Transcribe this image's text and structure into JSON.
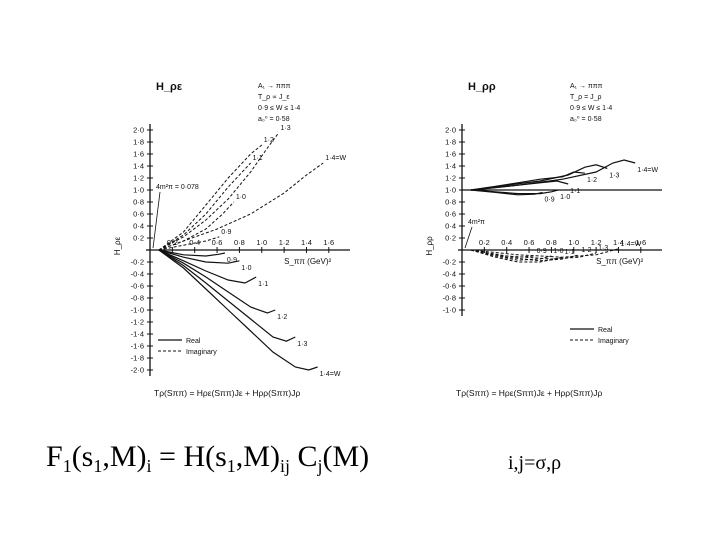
{
  "chart_data": [
    {
      "type": "line",
      "panel": "left",
      "title": "",
      "ylabel": "H_ρε",
      "ylabel_axis": "H_ρε",
      "xlabel": "S_ππ (GeV)²",
      "x_ticks": [
        "0·2",
        "0·4",
        "0·6",
        "0·8",
        "1·0",
        "1·2",
        "1·4",
        "1·6"
      ],
      "y_ticks_pos": [
        "2·0",
        "1·8",
        "1·6",
        "1·4",
        "1·2",
        "1·0",
        "0·8",
        "0·6",
        "0·4",
        "0·2"
      ],
      "y_ticks_neg": [
        "-0·2",
        "-0·4",
        "-0·6",
        "-0·8",
        "-1·0",
        "-1·2",
        "-1·4",
        "-1·6",
        "-1·8",
        "-2·0"
      ],
      "xlim": [
        0,
        1.7
      ],
      "ylim": [
        -2.1,
        2.1
      ],
      "header_annotations": [
        "A₁ → πππ",
        "T_ρ ∝ J_ε",
        "0·9 ≤ W ≤ 1·4",
        "a₀⁰ = 0·58"
      ],
      "threshold_label": "4m²π = 0·078",
      "legend": {
        "placement": "bottom-left",
        "entries": [
          "Real",
          "Imaginary"
        ]
      },
      "equation": "Tρ(Sππ) = Hρε(Sππ)Jε + Hρρ(Sππ)Jρ",
      "curve_labels_real": [
        "0·9",
        "1·0",
        "1·1",
        "1·2",
        "1·3",
        "1·4=W"
      ],
      "curve_labels_imag": [
        "0·9",
        "1·0",
        "1·1",
        "1·2",
        "1·3",
        "1·4=W"
      ],
      "series": [
        {
          "style": "solid",
          "label": "0·9",
          "x": [
            0.08,
            0.3,
            0.5,
            0.62,
            0.67
          ],
          "y": [
            0,
            -0.08,
            -0.1,
            -0.07,
            -0.05
          ]
        },
        {
          "style": "solid",
          "label": "1·0",
          "x": [
            0.08,
            0.3,
            0.5,
            0.7,
            0.8
          ],
          "y": [
            0,
            -0.12,
            -0.2,
            -0.22,
            -0.18
          ]
        },
        {
          "style": "solid",
          "label": "1·1",
          "x": [
            0.08,
            0.3,
            0.5,
            0.7,
            0.85,
            0.95
          ],
          "y": [
            0,
            -0.18,
            -0.35,
            -0.5,
            -0.55,
            -0.45
          ]
        },
        {
          "style": "solid",
          "label": "1·2",
          "x": [
            0.08,
            0.3,
            0.5,
            0.7,
            0.9,
            1.05,
            1.12
          ],
          "y": [
            0,
            -0.22,
            -0.45,
            -0.7,
            -0.95,
            -1.05,
            -1.0
          ]
        },
        {
          "style": "solid",
          "label": "1·3",
          "x": [
            0.08,
            0.3,
            0.5,
            0.7,
            0.9,
            1.1,
            1.22,
            1.3
          ],
          "y": [
            0,
            -0.26,
            -0.55,
            -0.85,
            -1.15,
            -1.45,
            -1.52,
            -1.45
          ]
        },
        {
          "style": "solid",
          "label": "1·4=W",
          "x": [
            0.08,
            0.3,
            0.5,
            0.7,
            0.9,
            1.1,
            1.3,
            1.42,
            1.5
          ],
          "y": [
            0,
            -0.3,
            -0.65,
            -1.0,
            -1.35,
            -1.7,
            -1.95,
            -2.0,
            -1.95
          ]
        },
        {
          "style": "dashed",
          "label": "0·9",
          "x": [
            0.08,
            0.3,
            0.5,
            0.62
          ],
          "y": [
            0,
            0.08,
            0.15,
            0.22
          ]
        },
        {
          "style": "dashed",
          "label": "1·0",
          "x": [
            0.08,
            0.3,
            0.5,
            0.65,
            0.75
          ],
          "y": [
            0,
            0.15,
            0.35,
            0.6,
            0.8
          ]
        },
        {
          "style": "dashed",
          "label": "1·1",
          "x": [
            0.08,
            0.3,
            0.5,
            0.7,
            0.9
          ],
          "y": [
            0,
            0.25,
            0.6,
            1.05,
            1.45
          ]
        },
        {
          "style": "dashed",
          "label": "1·2",
          "x": [
            0.08,
            0.3,
            0.5,
            0.7,
            0.9,
            1.0
          ],
          "y": [
            0,
            0.3,
            0.75,
            1.2,
            1.6,
            1.75
          ]
        },
        {
          "style": "dashed",
          "label": "1·3",
          "x": [
            0.08,
            0.3,
            0.5,
            0.7,
            0.9,
            1.05,
            1.15
          ],
          "y": [
            0,
            0.22,
            0.5,
            0.85,
            1.3,
            1.7,
            1.95
          ]
        },
        {
          "style": "dashed",
          "label": "1·4=W",
          "x": [
            0.08,
            0.3,
            0.6,
            0.9,
            1.2,
            1.4,
            1.55
          ],
          "y": [
            0,
            0.15,
            0.35,
            0.6,
            0.95,
            1.25,
            1.45
          ]
        }
      ]
    },
    {
      "type": "line",
      "panel": "right",
      "title": "",
      "ylabel": "H_ρρ",
      "ylabel_axis": "H_ρρ",
      "xlabel": "S_ππ (GeV)²",
      "x_ticks": [
        "0·2",
        "0·4",
        "0·6",
        "0·8",
        "1·0",
        "1·2",
        "1·4",
        "1·6"
      ],
      "y_ticks_pos": [
        "2·0",
        "1·8",
        "1·6",
        "1·4",
        "1·2",
        "1·0",
        "0·8",
        "0·6",
        "0·4",
        "0·2"
      ],
      "y_ticks_neg": [
        "-0·2",
        "-0·4",
        "-0·6",
        "-0·8",
        "-1·0"
      ],
      "xlim": [
        0,
        1.7
      ],
      "ylim": [
        -1.1,
        2.1
      ],
      "header_annotations": [
        "A₁ → πππ",
        "T_ρ = J_ρ",
        "0·9 ≤ W ≤ 1·4",
        "a₀⁰ = 0·58"
      ],
      "threshold_label": "4m²π",
      "legend": {
        "placement": "bottom-right",
        "entries": [
          "Real",
          "Imaginary"
        ]
      },
      "equation": "Tρ(Sππ) = Hρε(Sππ)Jε + Hρρ(Sππ)Jρ",
      "curve_labels_real": [
        "0·9",
        "1·0",
        "1·1",
        "1·2",
        "1·3",
        "1·4=W"
      ],
      "curve_labels_imag": [
        "0·9",
        "1·0",
        "1·1",
        "1·2",
        "1·3",
        "1·4=W"
      ],
      "series": [
        {
          "style": "solid",
          "label": "0·9",
          "x": [
            0.08,
            0.3,
            0.5,
            0.65,
            0.72
          ],
          "y": [
            1.0,
            0.96,
            0.92,
            0.93,
            0.96
          ]
        },
        {
          "style": "solid",
          "label": "1·0",
          "x": [
            0.08,
            0.3,
            0.5,
            0.7,
            0.8,
            0.86
          ],
          "y": [
            1.0,
            0.97,
            0.94,
            0.94,
            0.97,
            1.0
          ]
        },
        {
          "style": "solid",
          "label": "1·1",
          "x": [
            0.08,
            0.3,
            0.5,
            0.7,
            0.85,
            0.95
          ],
          "y": [
            1.0,
            1.04,
            1.08,
            1.12,
            1.15,
            1.1
          ]
        },
        {
          "style": "solid",
          "label": "1·2",
          "x": [
            0.08,
            0.3,
            0.5,
            0.7,
            0.9,
            1.0,
            1.1
          ],
          "y": [
            1.0,
            1.06,
            1.12,
            1.18,
            1.22,
            1.3,
            1.28
          ]
        },
        {
          "style": "solid",
          "label": "1·3",
          "x": [
            0.08,
            0.4,
            0.7,
            0.95,
            1.1,
            1.2,
            1.3
          ],
          "y": [
            1.0,
            1.08,
            1.15,
            1.25,
            1.38,
            1.42,
            1.36
          ]
        },
        {
          "style": "solid",
          "label": "1·4=W",
          "x": [
            0.08,
            0.5,
            0.9,
            1.2,
            1.35,
            1.45,
            1.55
          ],
          "y": [
            1.0,
            1.08,
            1.18,
            1.3,
            1.45,
            1.5,
            1.45
          ]
        },
        {
          "style": "dashed",
          "label": "0·9",
          "x": [
            0.08,
            0.3,
            0.5,
            0.65
          ],
          "y": [
            0,
            -0.08,
            -0.12,
            -0.1
          ]
        },
        {
          "style": "dashed",
          "label": "1·0",
          "x": [
            0.08,
            0.3,
            0.5,
            0.7,
            0.8
          ],
          "y": [
            0,
            -0.1,
            -0.17,
            -0.15,
            -0.1
          ]
        },
        {
          "style": "dashed",
          "label": "1·1",
          "x": [
            0.08,
            0.3,
            0.5,
            0.7,
            0.9
          ],
          "y": [
            0,
            -0.12,
            -0.2,
            -0.2,
            -0.12
          ]
        },
        {
          "style": "dashed",
          "label": "1·2",
          "x": [
            0.08,
            0.4,
            0.7,
            0.9,
            1.05
          ],
          "y": [
            0,
            -0.12,
            -0.18,
            -0.15,
            -0.08
          ]
        },
        {
          "style": "dashed",
          "label": "1·3",
          "x": [
            0.08,
            0.4,
            0.8,
            1.05,
            1.2
          ],
          "y": [
            0,
            -0.1,
            -0.15,
            -0.12,
            -0.05
          ]
        },
        {
          "style": "dashed",
          "label": "1·4=W",
          "x": [
            0.08,
            0.5,
            0.9,
            1.2,
            1.4
          ],
          "y": [
            0,
            -0.08,
            -0.12,
            -0.08,
            0.02
          ]
        }
      ]
    }
  ],
  "formula": {
    "F": "F",
    "sub1": "1",
    "open": "(s",
    "sub2": "1",
    "mid1": ",M)",
    "sub3": "i",
    "eq": " = H(s",
    "sub4": "1",
    "mid2": ",M)",
    "sub5": "ij",
    "c": " C",
    "sub6": "j",
    "end": "(M)"
  },
  "indices": "i,j=σ,ρ"
}
